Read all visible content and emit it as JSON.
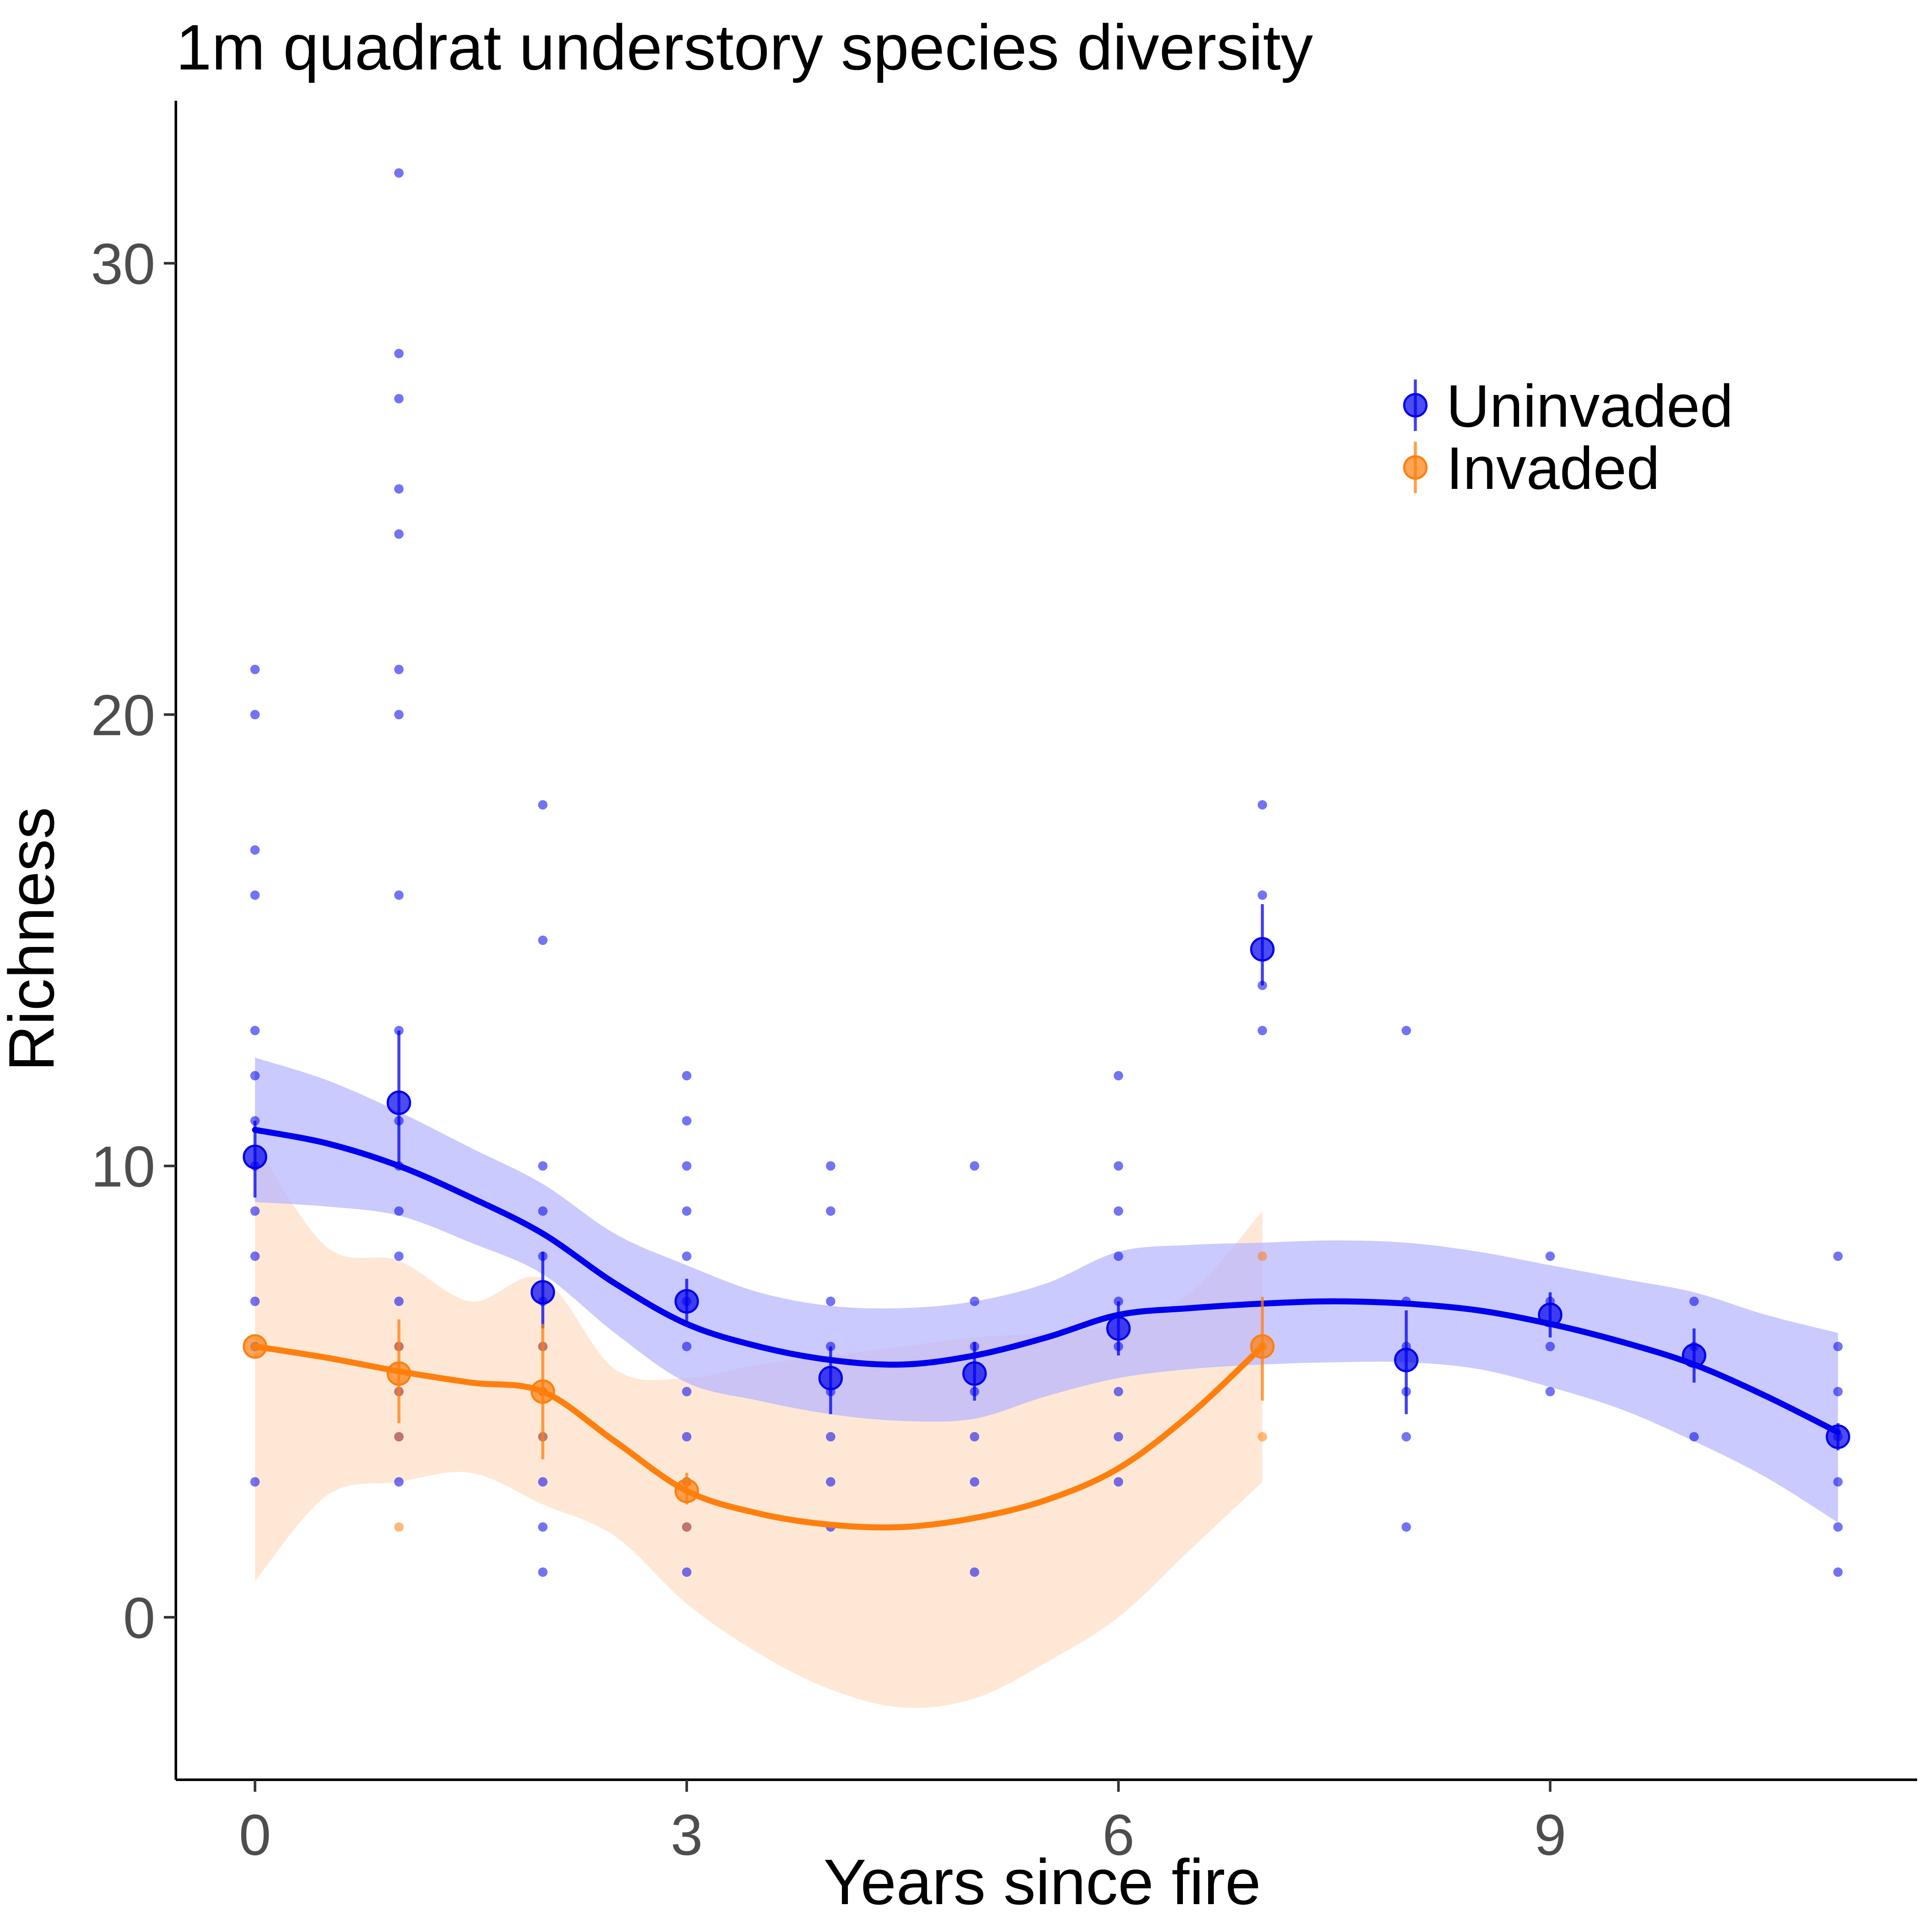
{
  "chart_data": {
    "type": "scatter",
    "title": "1m quadrat understory species diversity",
    "xlabel": "Years since fire",
    "ylabel": "Richness",
    "xlim": [
      -0.55,
      11.55
    ],
    "ylim": [
      -3.6,
      33.6
    ],
    "x_ticks": [
      0,
      3,
      6,
      9
    ],
    "y_ticks": [
      0,
      10,
      20,
      30
    ],
    "grid": false,
    "legend_position": "top-right",
    "colors": {
      "uninvaded": "#0000ee",
      "invaded": "#ff7f0e"
    },
    "series": [
      {
        "name": "Uninvaded",
        "color": "#0000ee",
        "band_color": "#b3b3ff",
        "raw_points": [
          [
            0,
            21
          ],
          [
            0,
            20
          ],
          [
            0,
            17
          ],
          [
            0,
            16
          ],
          [
            0,
            13
          ],
          [
            0,
            12
          ],
          [
            0,
            11
          ],
          [
            0,
            10
          ],
          [
            0,
            9
          ],
          [
            0,
            8
          ],
          [
            0,
            7
          ],
          [
            0,
            6
          ],
          [
            0,
            3
          ],
          [
            1,
            32
          ],
          [
            1,
            28
          ],
          [
            1,
            27
          ],
          [
            1,
            25
          ],
          [
            1,
            24
          ],
          [
            1,
            21
          ],
          [
            1,
            20
          ],
          [
            1,
            16
          ],
          [
            1,
            13
          ],
          [
            1,
            11
          ],
          [
            1,
            10
          ],
          [
            1,
            9
          ],
          [
            1,
            8
          ],
          [
            1,
            7
          ],
          [
            1,
            6
          ],
          [
            1,
            5
          ],
          [
            1,
            4
          ],
          [
            1,
            3
          ],
          [
            2,
            18
          ],
          [
            2,
            15
          ],
          [
            2,
            10
          ],
          [
            2,
            9
          ],
          [
            2,
            8
          ],
          [
            2,
            7
          ],
          [
            2,
            6
          ],
          [
            2,
            5
          ],
          [
            2,
            4
          ],
          [
            2,
            3
          ],
          [
            2,
            2
          ],
          [
            2,
            1
          ],
          [
            3,
            12
          ],
          [
            3,
            11
          ],
          [
            3,
            10
          ],
          [
            3,
            9
          ],
          [
            3,
            8
          ],
          [
            3,
            7
          ],
          [
            3,
            6
          ],
          [
            3,
            5
          ],
          [
            3,
            4
          ],
          [
            3,
            3
          ],
          [
            3,
            2
          ],
          [
            3,
            1
          ],
          [
            4,
            10
          ],
          [
            4,
            9
          ],
          [
            4,
            7
          ],
          [
            4,
            6
          ],
          [
            4,
            5
          ],
          [
            4,
            4
          ],
          [
            4,
            3
          ],
          [
            4,
            2
          ],
          [
            5,
            10
          ],
          [
            5,
            7
          ],
          [
            5,
            6
          ],
          [
            5,
            5
          ],
          [
            5,
            4
          ],
          [
            5,
            3
          ],
          [
            5,
            1
          ],
          [
            6,
            12
          ],
          [
            6,
            10
          ],
          [
            6,
            9
          ],
          [
            6,
            8
          ],
          [
            6,
            7
          ],
          [
            6,
            6
          ],
          [
            6,
            5
          ],
          [
            6,
            4
          ],
          [
            6,
            3
          ],
          [
            7,
            18
          ],
          [
            7,
            16
          ],
          [
            7,
            14
          ],
          [
            7,
            13
          ],
          [
            8,
            13
          ],
          [
            8,
            7
          ],
          [
            8,
            6
          ],
          [
            8,
            5
          ],
          [
            8,
            4
          ],
          [
            8,
            2
          ],
          [
            9,
            8
          ],
          [
            9,
            7
          ],
          [
            9,
            6
          ],
          [
            9,
            5
          ],
          [
            10,
            7
          ],
          [
            10,
            6
          ],
          [
            10,
            4
          ],
          [
            11,
            8
          ],
          [
            11,
            6
          ],
          [
            11,
            5
          ],
          [
            11,
            4
          ],
          [
            11,
            3
          ],
          [
            11,
            2
          ],
          [
            11,
            1
          ]
        ],
        "means": [
          {
            "x": 0,
            "y": 10.2,
            "lo": 9.3,
            "hi": 11.0
          },
          {
            "x": 1,
            "y": 11.4,
            "lo": 10.0,
            "hi": 13.0
          },
          {
            "x": 2,
            "y": 7.2,
            "lo": 6.4,
            "hi": 8.1
          },
          {
            "x": 3,
            "y": 7.0,
            "lo": 6.5,
            "hi": 7.5
          },
          {
            "x": 4,
            "y": 5.3,
            "lo": 4.5,
            "hi": 6.0
          },
          {
            "x": 5,
            "y": 5.4,
            "lo": 4.8,
            "hi": 6.1
          },
          {
            "x": 6,
            "y": 6.4,
            "lo": 5.8,
            "hi": 7.0
          },
          {
            "x": 7,
            "y": 14.8,
            "lo": 14.0,
            "hi": 15.8
          },
          {
            "x": 8,
            "y": 5.7,
            "lo": 4.5,
            "hi": 6.8
          },
          {
            "x": 9,
            "y": 6.7,
            "lo": 6.2,
            "hi": 7.2
          },
          {
            "x": 10,
            "y": 5.8,
            "lo": 5.2,
            "hi": 6.4
          },
          {
            "x": 11,
            "y": 4.0,
            "lo": 3.7,
            "hi": 4.3
          }
        ],
        "smooth": {
          "x": [
            0,
            0.5,
            1,
            1.5,
            2,
            2.5,
            3,
            3.5,
            4,
            4.5,
            5,
            5.5,
            6,
            6.5,
            7,
            7.5,
            8,
            8.5,
            9,
            9.5,
            10,
            10.5,
            11
          ],
          "fit": [
            10.8,
            10.5,
            10.0,
            9.3,
            8.5,
            7.4,
            6.5,
            6.0,
            5.7,
            5.6,
            5.8,
            6.2,
            6.7,
            6.85,
            6.95,
            7.0,
            6.95,
            6.8,
            6.5,
            6.1,
            5.6,
            4.9,
            4.1
          ],
          "lower": [
            9.2,
            9.1,
            8.9,
            8.3,
            7.6,
            6.3,
            5.2,
            4.8,
            4.5,
            4.35,
            4.4,
            4.9,
            5.3,
            5.5,
            5.6,
            5.65,
            5.65,
            5.5,
            5.1,
            4.6,
            3.9,
            3.1,
            2.1
          ],
          "upper": [
            12.4,
            11.9,
            11.2,
            10.4,
            9.6,
            8.5,
            7.8,
            7.2,
            6.9,
            6.85,
            7.0,
            7.4,
            8.1,
            8.25,
            8.3,
            8.35,
            8.3,
            8.1,
            7.8,
            7.5,
            7.2,
            6.7,
            6.3
          ]
        }
      },
      {
        "name": "Invaded",
        "color": "#ff7f0e",
        "band_color": "#fdd9b9",
        "raw_points": [
          [
            1,
            6
          ],
          [
            1,
            5
          ],
          [
            1,
            4
          ],
          [
            1,
            2
          ],
          [
            2,
            6
          ],
          [
            2,
            5
          ],
          [
            2,
            4
          ],
          [
            3,
            3
          ],
          [
            3,
            2
          ],
          [
            7,
            8
          ],
          [
            7,
            6
          ],
          [
            7,
            4
          ]
        ],
        "means": [
          {
            "x": 0,
            "y": 6.0,
            "lo": 6.0,
            "hi": 6.0
          },
          {
            "x": 1,
            "y": 5.4,
            "lo": 4.3,
            "hi": 6.6
          },
          {
            "x": 2,
            "y": 5.0,
            "lo": 3.5,
            "hi": 6.5
          },
          {
            "x": 3,
            "y": 2.8,
            "lo": 2.5,
            "hi": 3.2
          },
          {
            "x": 7,
            "y": 6.0,
            "lo": 4.8,
            "hi": 7.1
          }
        ],
        "smooth": {
          "x": [
            0,
            0.5,
            1,
            1.5,
            2,
            2.5,
            3,
            3.5,
            4,
            4.5,
            5,
            5.5,
            6,
            6.5,
            7
          ],
          "fit": [
            6.0,
            5.75,
            5.45,
            5.2,
            5.0,
            3.9,
            2.8,
            2.3,
            2.05,
            2.0,
            2.2,
            2.6,
            3.3,
            4.5,
            6.0
          ],
          "lower": [
            0.8,
            2.7,
            3.0,
            3.2,
            2.5,
            1.8,
            0.3,
            -0.8,
            -1.6,
            -2.0,
            -1.8,
            -1.0,
            0.0,
            1.5,
            3.0
          ],
          "upper": [
            10.5,
            8.2,
            7.9,
            7.0,
            7.5,
            5.5,
            5.3,
            5.6,
            5.8,
            6.0,
            6.2,
            6.3,
            6.5,
            7.2,
            9.0
          ]
        }
      }
    ]
  }
}
